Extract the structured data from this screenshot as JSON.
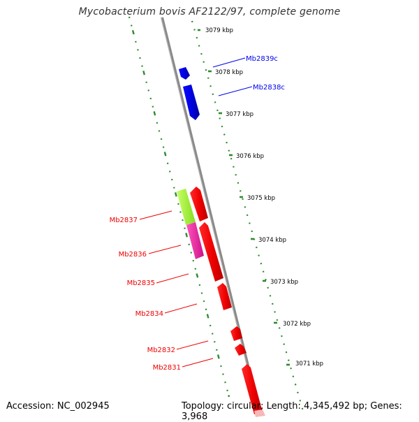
{
  "title": "Mycobacterium bovis AF2122/97, complete genome",
  "footer": {
    "accession": "Accession: NC_002945",
    "summary": "Topology: circular; Length: 4,345,492 bp; Genes: 3,968"
  },
  "colors": {
    "backbone": "#7f7f7f",
    "ruler": "#2e8b2e",
    "forward_gene": "#0000ee",
    "reverse_gene": "#ff0000",
    "green_gene": "#99ee33",
    "pink_gene": "#ee3399"
  },
  "ruler_ticks": [
    {
      "label": "3079 kbp"
    },
    {
      "label": "3078 kbp"
    },
    {
      "label": "3077 kbp"
    },
    {
      "label": "3076 kbp"
    },
    {
      "label": "3075 kbp"
    },
    {
      "label": "3074 kbp"
    },
    {
      "label": "3073 kbp"
    },
    {
      "label": "3072 kbp"
    },
    {
      "label": "3071 kbp"
    }
  ],
  "genes": [
    {
      "name": "Mb2839c",
      "color": "#0000ee"
    },
    {
      "name": "Mb2838c",
      "color": "#0000ee"
    },
    {
      "name": "Mb2837",
      "color": "#ee1111"
    },
    {
      "name": "Mb2836",
      "color": "#ee1111"
    },
    {
      "name": "Mb2835",
      "color": "#ee1111"
    },
    {
      "name": "Mb2834",
      "color": "#ee1111"
    },
    {
      "name": "Mb2832",
      "color": "#ee1111"
    },
    {
      "name": "Mb2831",
      "color": "#ee1111"
    }
  ]
}
